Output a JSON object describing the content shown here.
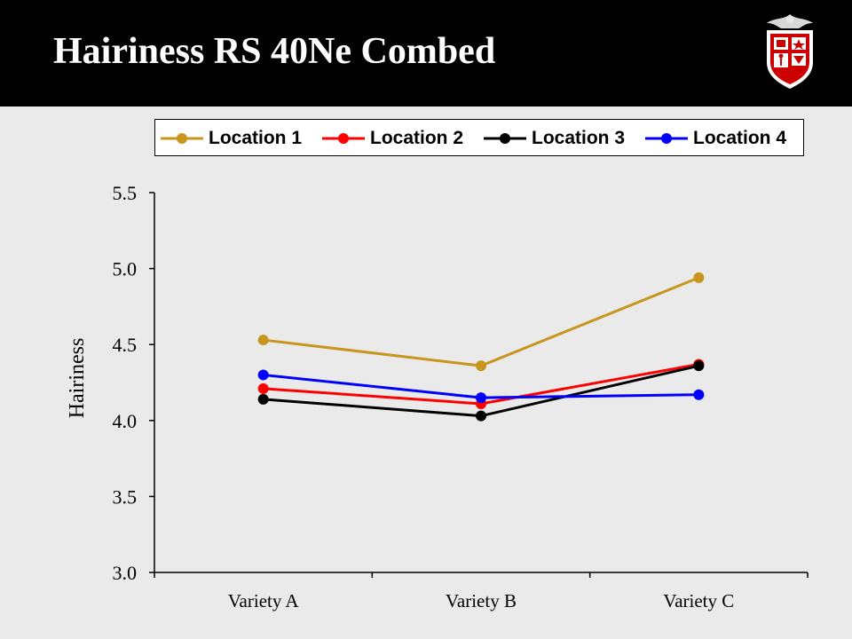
{
  "slide": {
    "title": "Hairiness RS 40Ne Combed"
  },
  "colors": {
    "title_bar": "#000000",
    "background": "#eaeaea",
    "logo_red": "#cc0000"
  },
  "chart_data": {
    "type": "line",
    "categories": [
      "Variety A",
      "Variety B",
      "Variety C"
    ],
    "series": [
      {
        "name": "Location 1",
        "color": "#c8961e",
        "values": [
          4.53,
          4.36,
          4.94
        ]
      },
      {
        "name": "Location 2",
        "color": "#ff0000",
        "values": [
          4.21,
          4.11,
          4.37
        ]
      },
      {
        "name": "Location 3",
        "color": "#000000",
        "values": [
          4.14,
          4.03,
          4.36
        ]
      },
      {
        "name": "Location 4",
        "color": "#0000ff",
        "values": [
          4.3,
          4.15,
          4.17
        ]
      }
    ],
    "ylabel": "Hairiness",
    "xlabel": "",
    "ylim": [
      3.0,
      5.5
    ],
    "yticks": [
      "3.0",
      "3.5",
      "4.0",
      "4.5",
      "5.0",
      "5.5"
    ],
    "grid": false,
    "legend_position": "top"
  }
}
